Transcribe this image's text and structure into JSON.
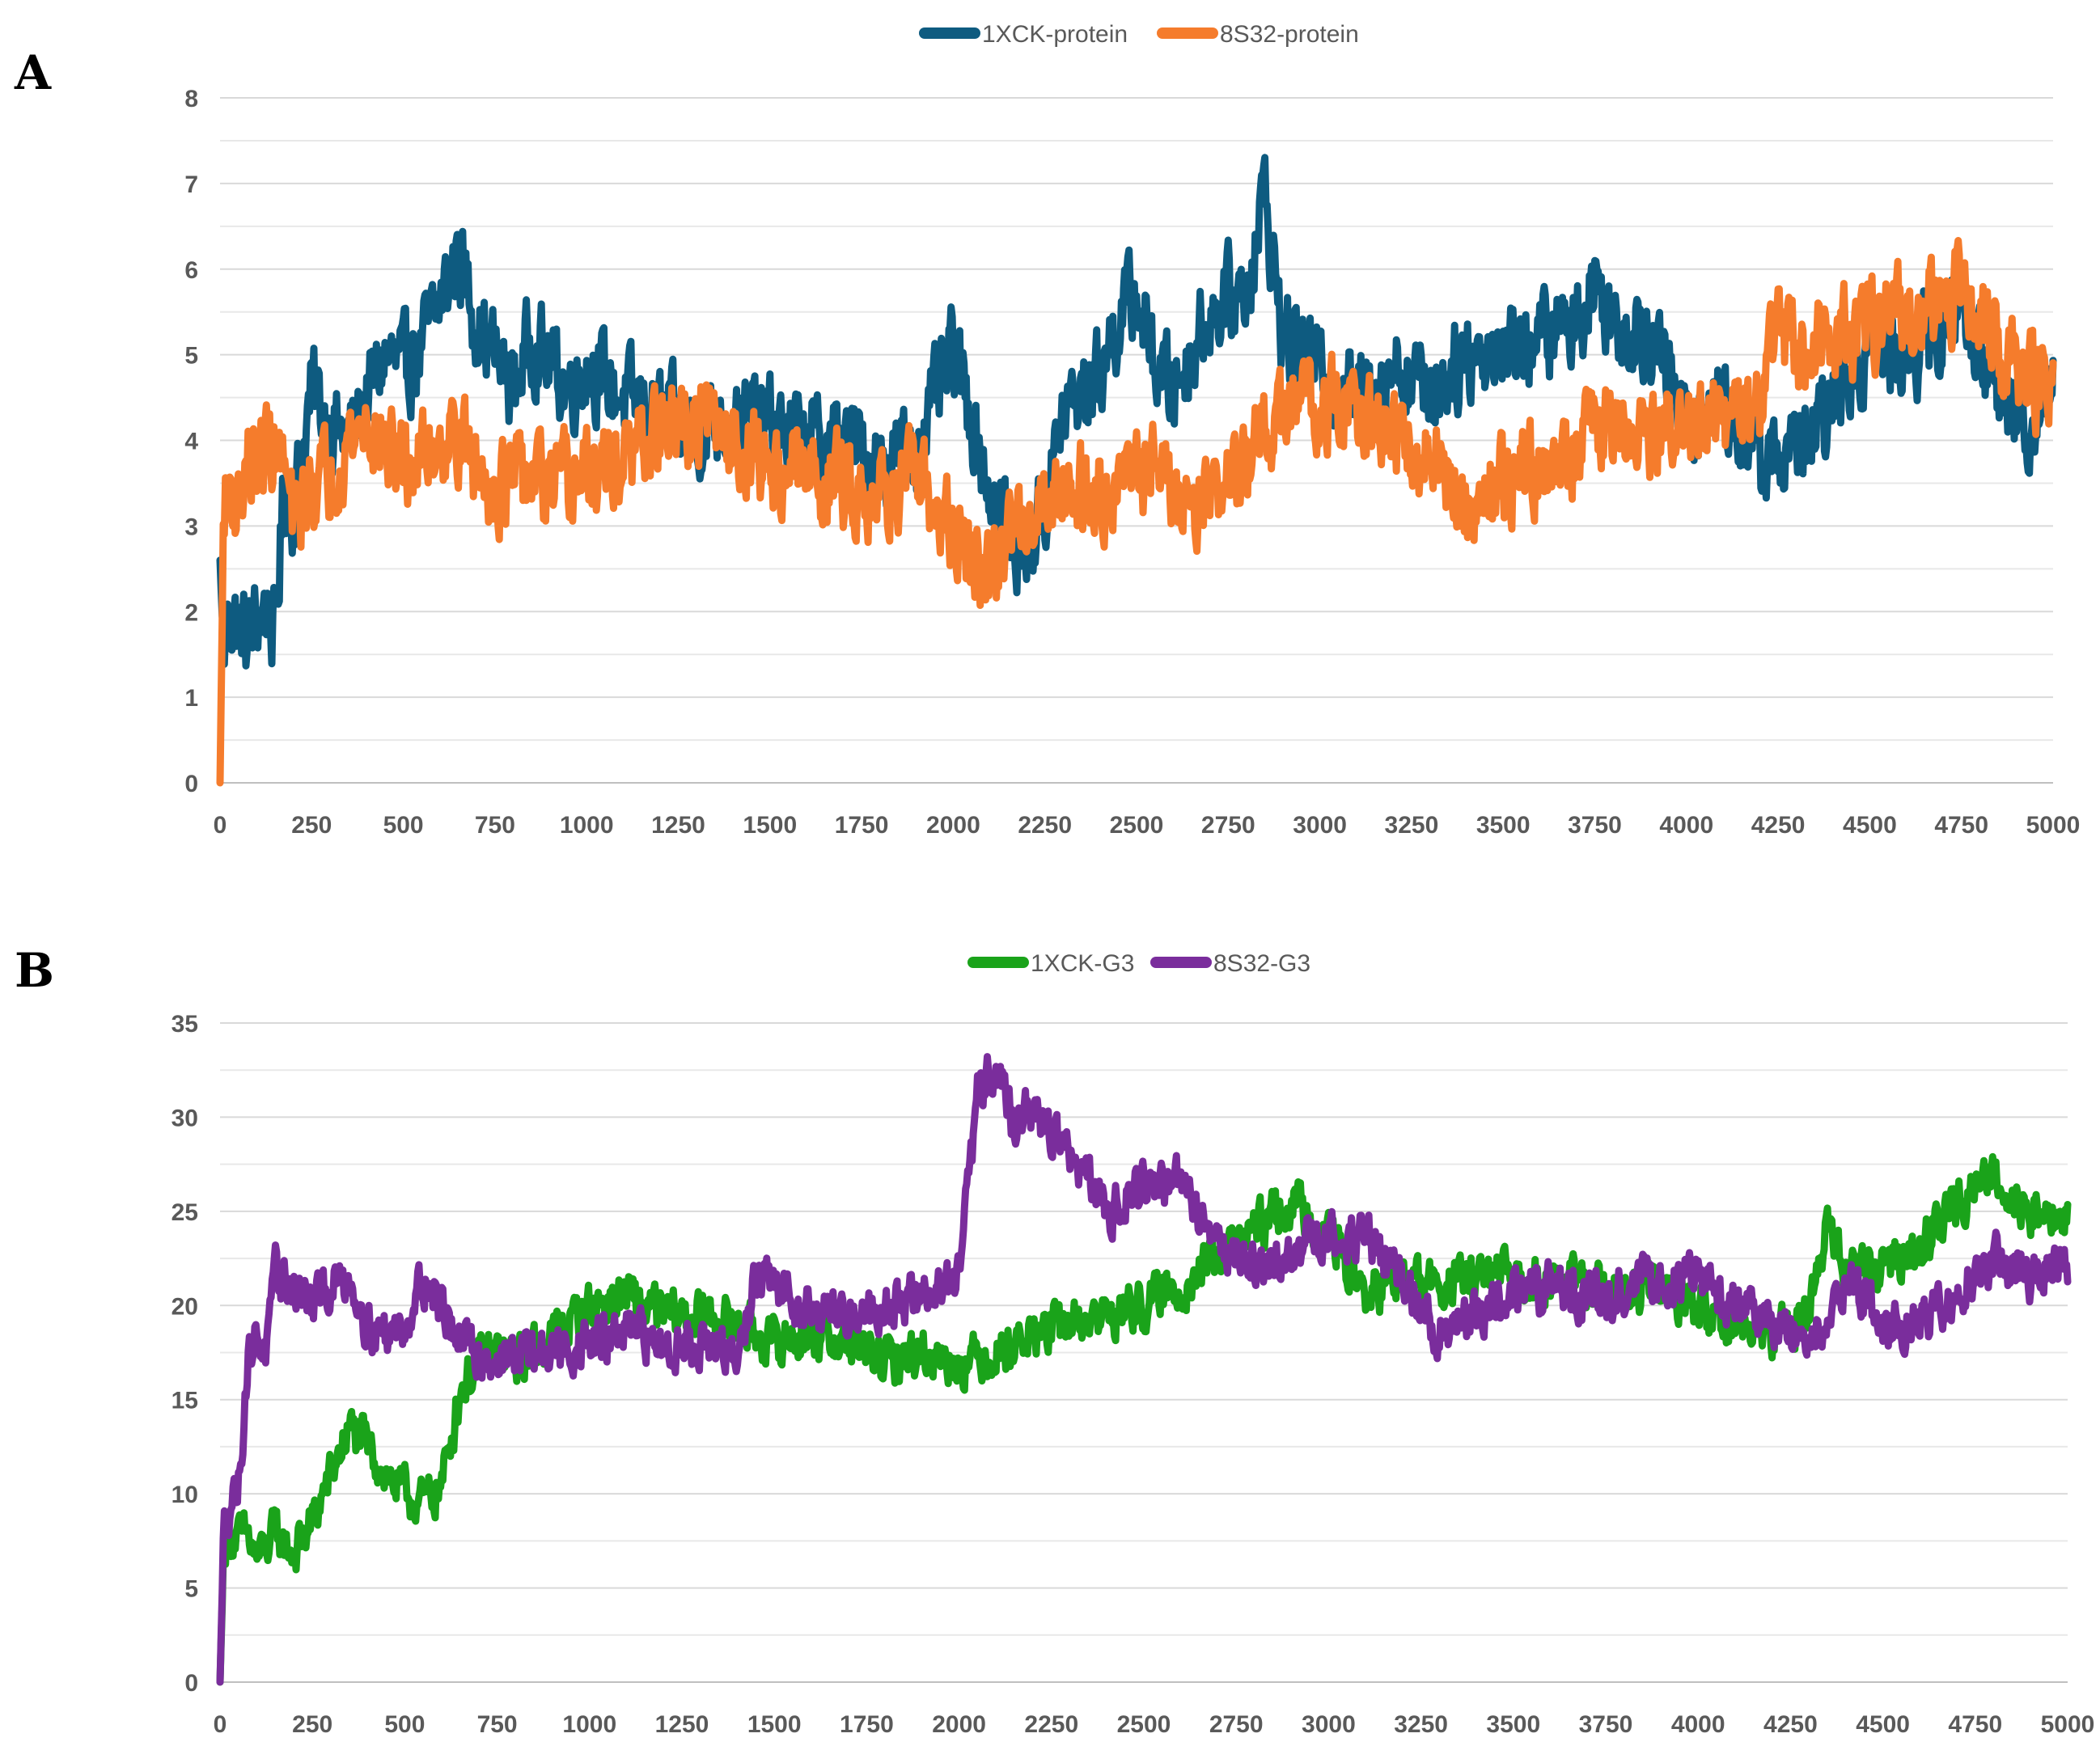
{
  "panels": [
    {
      "letter": "A",
      "chart_data": {
        "type": "line",
        "title": "",
        "xlabel": "",
        "ylabel": "",
        "xlim": [
          0,
          5000
        ],
        "ylim": [
          0,
          8
        ],
        "xticks": [
          0,
          250,
          500,
          750,
          1000,
          1250,
          1500,
          1750,
          2000,
          2250,
          2500,
          2750,
          3000,
          3250,
          3500,
          3750,
          4000,
          4250,
          4500,
          4750,
          5000
        ],
        "yticks": [
          0,
          1,
          2,
          3,
          4,
          5,
          6,
          7,
          8
        ],
        "grid": true,
        "legend_position": "top-center",
        "series": [
          {
            "name": "1XCK-protein",
            "color": "#0e5b80",
            "x": [
              0,
              10,
              25,
              50,
              75,
              100,
              125,
              150,
              175,
              200,
              250,
              300,
              350,
              400,
              450,
              500,
              550,
              600,
              650,
              700,
              750,
              800,
              850,
              900,
              950,
              1000,
              1100,
              1200,
              1300,
              1400,
              1500,
              1600,
              1700,
              1800,
              1900,
              2000,
              2050,
              2100,
              2150,
              2200,
              2250,
              2300,
              2400,
              2450,
              2500,
              2550,
              2600,
              2700,
              2800,
              2850,
              2900,
              3000,
              3100,
              3200,
              3300,
              3400,
              3500,
              3600,
              3700,
              3750,
              3800,
              3900,
              4000,
              4100,
              4200,
              4250,
              4300,
              4400,
              4500,
              4600,
              4700,
              4750,
              4800,
              4850,
              4900,
              4950,
              5000
            ],
            "y": [
              2.6,
              1.5,
              2.0,
              1.8,
              1.7,
              1.9,
              2.1,
              1.7,
              3.5,
              3.2,
              4.6,
              4.2,
              4.0,
              4.5,
              5.0,
              4.8,
              5.1,
              5.6,
              6.2,
              5.4,
              5.0,
              4.6,
              5.2,
              4.9,
              4.6,
              4.9,
              4.5,
              4.3,
              4.1,
              4.3,
              4.2,
              4.0,
              4.0,
              3.8,
              3.9,
              5.0,
              4.3,
              3.4,
              3.0,
              2.7,
              3.2,
              4.3,
              4.8,
              5.4,
              5.7,
              4.9,
              4.6,
              5.5,
              5.8,
              6.9,
              5.2,
              4.8,
              4.5,
              4.9,
              4.6,
              5.0,
              5.1,
              5.2,
              5.4,
              5.9,
              5.4,
              5.3,
              4.2,
              4.5,
              3.7,
              3.9,
              3.8,
              4.4,
              5.2,
              5.0,
              5.3,
              5.7,
              5.0,
              4.6,
              4.3,
              4.2,
              5.0
            ]
          },
          {
            "name": "8S32-protein",
            "color": "#f57c2c",
            "x": [
              0,
              10,
              25,
              50,
              75,
              100,
              125,
              150,
              175,
              200,
              250,
              300,
              350,
              400,
              450,
              500,
              550,
              600,
              650,
              700,
              750,
              800,
              850,
              900,
              950,
              1000,
              1100,
              1200,
              1300,
              1400,
              1500,
              1600,
              1700,
              1800,
              1900,
              2000,
              2050,
              2100,
              2150,
              2200,
              2250,
              2300,
              2400,
              2450,
              2500,
              2550,
              2600,
              2700,
              2800,
              2850,
              2900,
              3000,
              3100,
              3200,
              3300,
              3400,
              3500,
              3600,
              3700,
              3750,
              3800,
              3900,
              4000,
              4100,
              4200,
              4250,
              4300,
              4400,
              4500,
              4600,
              4700,
              4750,
              4800,
              4850,
              4900,
              4950,
              5000
            ],
            "y": [
              0.0,
              3.2,
              3.5,
              3.2,
              3.8,
              3.6,
              4.0,
              3.9,
              3.7,
              3.0,
              3.5,
              3.6,
              4.0,
              4.2,
              3.9,
              3.7,
              3.8,
              4.0,
              4.1,
              3.6,
              3.5,
              3.5,
              3.6,
              3.4,
              3.5,
              3.6,
              3.7,
              4.1,
              4.2,
              4.0,
              3.7,
              3.6,
              3.5,
              3.4,
              3.5,
              2.9,
              2.6,
              2.3,
              2.9,
              3.2,
              3.3,
              3.5,
              3.4,
              3.6,
              3.5,
              3.9,
              3.3,
              3.4,
              3.7,
              4.0,
              4.3,
              4.5,
              4.3,
              4.0,
              3.8,
              3.2,
              3.6,
              3.7,
              3.9,
              4.2,
              4.0,
              4.1,
              4.1,
              4.2,
              4.4,
              5.3,
              5.0,
              5.2,
              5.3,
              5.5,
              5.6,
              5.8,
              5.5,
              5.1,
              4.8,
              4.6,
              4.6
            ]
          }
        ]
      }
    },
    {
      "letter": "B",
      "chart_data": {
        "type": "line",
        "title": "",
        "xlabel": "",
        "ylabel": "",
        "xlim": [
          0,
          5000
        ],
        "ylim": [
          0,
          35
        ],
        "xticks": [
          0,
          250,
          500,
          750,
          1000,
          1250,
          1500,
          1750,
          2000,
          2250,
          2500,
          2750,
          3000,
          3250,
          3500,
          3750,
          4000,
          4250,
          4500,
          4750,
          5000
        ],
        "yticks": [
          0,
          5,
          10,
          15,
          20,
          25,
          30,
          35
        ],
        "grid": true,
        "legend_position": "top-center",
        "series": [
          {
            "name": "1XCK-G3",
            "color": "#1aa31a",
            "x": [
              0,
              10,
              25,
              50,
              75,
              100,
              125,
              150,
              200,
              250,
              300,
              350,
              400,
              450,
              500,
              550,
              600,
              650,
              700,
              750,
              800,
              900,
              1000,
              1100,
              1200,
              1300,
              1400,
              1500,
              1600,
              1700,
              1800,
              1900,
              2000,
              2100,
              2200,
              2300,
              2400,
              2500,
              2600,
              2700,
              2800,
              2900,
              3000,
              3100,
              3200,
              3300,
              3400,
              3500,
              3600,
              3700,
              3800,
              3900,
              4000,
              4100,
              4200,
              4300,
              4350,
              4400,
              4500,
              4600,
              4700,
              4800,
              4900,
              5000
            ],
            "y": [
              0.0,
              7.0,
              8.0,
              7.5,
              7.8,
              6.5,
              7.2,
              8.0,
              6.8,
              8.5,
              11.0,
              13.5,
              12.5,
              11.0,
              10.0,
              9.5,
              10.5,
              15.5,
              17.0,
              17.5,
              17.0,
              18.5,
              20.0,
              20.5,
              19.5,
              19.5,
              19.0,
              18.0,
              18.5,
              18.0,
              17.0,
              17.5,
              17.0,
              17.5,
              18.5,
              19.0,
              19.5,
              20.0,
              21.0,
              22.5,
              24.0,
              25.5,
              24.0,
              20.5,
              21.5,
              21.0,
              21.5,
              21.5,
              21.5,
              21.0,
              20.5,
              21.0,
              20.0,
              19.0,
              18.5,
              19.5,
              24.5,
              22.0,
              22.0,
              23.0,
              25.5,
              27.0,
              25.0,
              24.5
            ]
          },
          {
            "name": "8S32-G3",
            "color": "#7a2d9c",
            "x": [
              0,
              10,
              25,
              50,
              75,
              100,
              125,
              150,
              200,
              250,
              300,
              350,
              400,
              450,
              500,
              550,
              600,
              650,
              700,
              750,
              800,
              900,
              1000,
              1100,
              1200,
              1300,
              1400,
              1450,
              1500,
              1600,
              1700,
              1800,
              1900,
              2000,
              2050,
              2100,
              2150,
              2200,
              2300,
              2400,
              2500,
              2600,
              2700,
              2800,
              2900,
              3000,
              3100,
              3200,
              3300,
              3400,
              3500,
              3600,
              3700,
              3800,
              3900,
              4000,
              4100,
              4200,
              4300,
              4400,
              4500,
              4600,
              4700,
              4800,
              4900,
              5000
            ],
            "y": [
              0.0,
              8.0,
              9.5,
              10.5,
              17.0,
              18.5,
              17.5,
              21.5,
              21.0,
              20.0,
              21.0,
              21.5,
              19.0,
              18.5,
              19.0,
              21.5,
              20.0,
              18.0,
              17.5,
              17.0,
              17.5,
              17.5,
              18.0,
              18.5,
              18.0,
              18.0,
              17.0,
              21.5,
              21.0,
              20.0,
              19.5,
              20.0,
              20.5,
              21.5,
              31.0,
              33.0,
              29.5,
              30.5,
              28.0,
              25.0,
              26.5,
              26.5,
              23.5,
              22.0,
              22.5,
              24.0,
              23.5,
              21.5,
              18.5,
              19.5,
              20.5,
              21.0,
              20.5,
              21.0,
              21.5,
              21.5,
              20.0,
              19.0,
              18.0,
              21.5,
              19.0,
              19.0,
              20.5,
              22.5,
              21.5,
              22.0
            ]
          }
        ]
      }
    }
  ]
}
